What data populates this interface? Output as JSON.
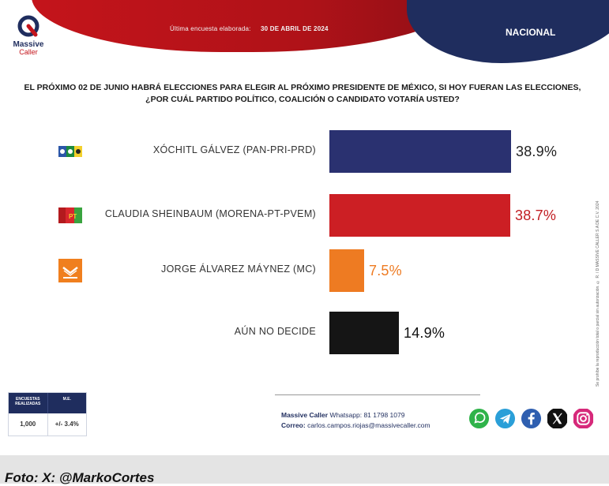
{
  "header": {
    "brand_line1": "Massive",
    "brand_line2": "Caller",
    "last_survey_label": "Última encuesta elaborada:",
    "last_survey_date": "30 DE ABRIL DE 2024",
    "scope": "NACIONAL"
  },
  "question": {
    "line1": "EL PRÓXIMO 02 DE JUNIO HABRÁ ELECCIONES PARA ELEGIR AL PRÓXIMO PRESIDENTE DE MÉXICO, SI HOY FUERAN LAS ELECCIONES,",
    "line2": "¿POR CUÁL PARTIDO POLÍTICO, COALICIÓN O CANDIDATO VOTARÍA USTED?"
  },
  "chart_data": {
    "type": "bar",
    "orientation": "horizontal",
    "categories": [
      "XÓCHITL GÁLVEZ (PAN-PRI-PRD)",
      "CLAUDIA SHEINBAUM (MORENA-PT-PVEM)",
      "JORGE ÁLVAREZ MÁYNEZ (MC)",
      "AÚN NO DECIDE"
    ],
    "values": [
      38.9,
      38.7,
      7.5,
      14.9
    ],
    "value_labels": [
      "38.9%",
      "38.7%",
      "7.5%",
      "14.9%"
    ],
    "colors": [
      "#2a3170",
      "#cc1f24",
      "#ee7b22",
      "#151515"
    ],
    "label_colors": [
      "#222222",
      "#c11d22",
      "#ee7b22",
      "#111111"
    ],
    "xlim": [
      0,
      40
    ],
    "grid": false,
    "legend": "none"
  },
  "side_note": "Se prohíbe la reproducción total o parcial sin autorización. © R. / D MASSIVE CALLER S.A DE C.V. 2024",
  "methodology": {
    "col1_header": "ENCUESTAS REALIZADAS",
    "col2_header": "M.E.",
    "col1_value": "1,000",
    "col2_value": "+/- 3.4%"
  },
  "contact": {
    "line1_label": "Massive Caller",
    "line1_value": "Whatsapp: 81 1798 1079",
    "line2_label": "Correo:",
    "line2_value": "carlos.campos.riojas@massivecaller.com"
  },
  "socials": [
    "whatsapp-icon",
    "telegram-icon",
    "facebook-icon",
    "x-icon",
    "instagram-icon"
  ],
  "caption": "Foto: X: @MarkoCortes"
}
